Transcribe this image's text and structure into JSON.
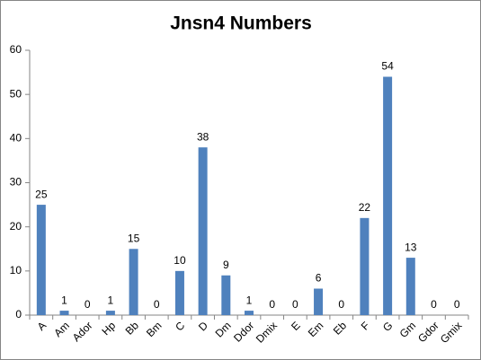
{
  "chart_data": {
    "type": "bar",
    "title": "Jnsn4 Numbers",
    "categories": [
      "A",
      "Am",
      "Ador",
      "Hp",
      "Bb",
      "Bm",
      "C",
      "D",
      "Dm",
      "Ddor",
      "Dmix",
      "E",
      "Em",
      "Eb",
      "F",
      "G",
      "Gm",
      "Gdor",
      "Gmix"
    ],
    "values": [
      25,
      1,
      0,
      1,
      15,
      0,
      10,
      38,
      9,
      1,
      0,
      0,
      6,
      0,
      22,
      54,
      13,
      0,
      0
    ],
    "color": "#4f81bd",
    "ylim": [
      0,
      60
    ],
    "yticks": [
      0,
      10,
      20,
      30,
      40,
      50,
      60
    ],
    "grid": false
  }
}
